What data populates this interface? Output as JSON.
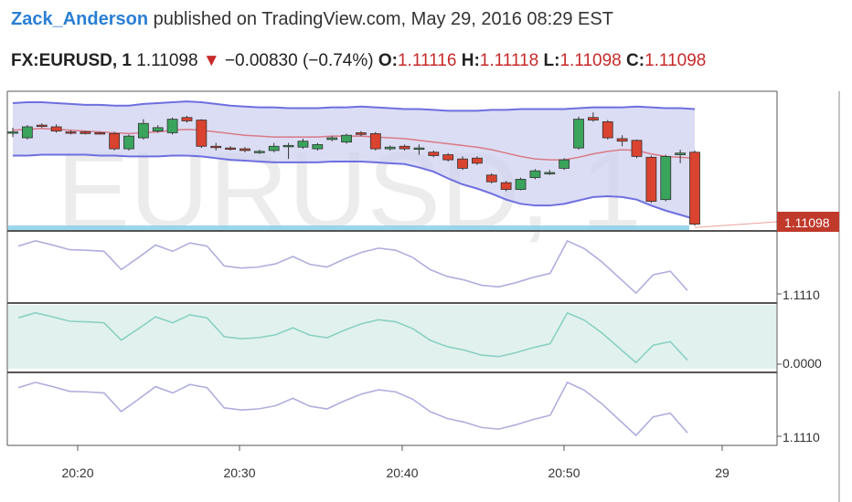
{
  "header": {
    "author": "Zack_Anderson",
    "published_text": "published on TradingView.com, May 29, 2016 08:29 EST",
    "symbol": "FX:EURUSD, 1",
    "last": "1.11098",
    "change": "−0.00830 (−0.74%)",
    "open_label": "O:",
    "open": "1.11116",
    "high_label": "H:",
    "high": "1.11118",
    "low_label": "L:",
    "low": "1.11098",
    "close_label": "C:",
    "close": "1.11098"
  },
  "watermark": "EURUSD, 1",
  "price_label": "1.11098",
  "pane_labels": [
    "1.1110",
    "0.0000",
    "1.1110"
  ],
  "x_ticks": [
    "20:20",
    "20:30",
    "20:40",
    "20:50",
    "29"
  ],
  "colors": {
    "up": "#3aa35c",
    "down": "#d9432f",
    "band_fill": "#cfd2f0",
    "band_line": "#6e6fe0",
    "ma_line": "#d97a86",
    "pane_line": "#b0aedd",
    "osc_fill": "#e1f2ee",
    "osc_line": "#8ad0c2",
    "price_tag": "#c0392b"
  },
  "chart_data": {
    "type": "candlestick",
    "x_range": [
      "20:16",
      "20:58"
    ],
    "x_ticks": [
      "20:20",
      "20:30",
      "20:40",
      "20:50",
      "29"
    ],
    "last_price": 1.11098,
    "candles": [
      {
        "o": 0.46,
        "c": 0.47,
        "h": 0.52,
        "l": 0.41
      },
      {
        "o": 0.4,
        "c": 0.53,
        "h": 0.55,
        "l": 0.38
      },
      {
        "o": 0.55,
        "c": 0.54,
        "h": 0.57,
        "l": 0.52
      },
      {
        "o": 0.53,
        "c": 0.48,
        "h": 0.56,
        "l": 0.46
      },
      {
        "o": 0.47,
        "c": 0.46,
        "h": 0.49,
        "l": 0.44
      },
      {
        "o": 0.47,
        "c": 0.45,
        "h": 0.48,
        "l": 0.44
      },
      {
        "o": 0.46,
        "c": 0.45,
        "h": 0.47,
        "l": 0.44
      },
      {
        "o": 0.45,
        "c": 0.27,
        "h": 0.47,
        "l": 0.25
      },
      {
        "o": 0.27,
        "c": 0.42,
        "h": 0.44,
        "l": 0.25
      },
      {
        "o": 0.4,
        "c": 0.57,
        "h": 0.62,
        "l": 0.38
      },
      {
        "o": 0.48,
        "c": 0.52,
        "h": 0.55,
        "l": 0.46
      },
      {
        "o": 0.46,
        "c": 0.62,
        "h": 0.64,
        "l": 0.44
      },
      {
        "o": 0.64,
        "c": 0.6,
        "h": 0.66,
        "l": 0.58
      },
      {
        "o": 0.61,
        "c": 0.3,
        "h": 0.62,
        "l": 0.28
      },
      {
        "o": 0.3,
        "c": 0.29,
        "h": 0.34,
        "l": 0.25
      },
      {
        "o": 0.28,
        "c": 0.27,
        "h": 0.3,
        "l": 0.25
      },
      {
        "o": 0.27,
        "c": 0.25,
        "h": 0.29,
        "l": 0.23
      },
      {
        "o": 0.23,
        "c": 0.24,
        "h": 0.26,
        "l": 0.21
      },
      {
        "o": 0.25,
        "c": 0.3,
        "h": 0.34,
        "l": 0.23
      },
      {
        "o": 0.31,
        "c": 0.31,
        "h": 0.34,
        "l": 0.15
      },
      {
        "o": 0.29,
        "c": 0.36,
        "h": 0.39,
        "l": 0.27
      },
      {
        "o": 0.27,
        "c": 0.32,
        "h": 0.34,
        "l": 0.25
      },
      {
        "o": 0.38,
        "c": 0.4,
        "h": 0.42,
        "l": 0.36
      },
      {
        "o": 0.35,
        "c": 0.43,
        "h": 0.45,
        "l": 0.33
      },
      {
        "o": 0.46,
        "c": 0.44,
        "h": 0.48,
        "l": 0.42
      },
      {
        "o": 0.45,
        "c": 0.27,
        "h": 0.47,
        "l": 0.25
      },
      {
        "o": 0.27,
        "c": 0.29,
        "h": 0.31,
        "l": 0.25
      },
      {
        "o": 0.3,
        "c": 0.27,
        "h": 0.32,
        "l": 0.25
      },
      {
        "o": 0.28,
        "c": 0.28,
        "h": 0.32,
        "l": 0.2
      },
      {
        "o": 0.23,
        "c": 0.19,
        "h": 0.25,
        "l": 0.17
      },
      {
        "o": 0.2,
        "c": 0.14,
        "h": 0.22,
        "l": 0.12
      },
      {
        "o": 0.15,
        "c": 0.04,
        "h": 0.18,
        "l": 0.02
      },
      {
        "o": 0.16,
        "c": 0.1,
        "h": 0.18,
        "l": 0.08
      },
      {
        "o": -0.04,
        "c": -0.12,
        "h": -0.02,
        "l": -0.14
      },
      {
        "o": -0.13,
        "c": -0.21,
        "h": -0.11,
        "l": -0.23
      },
      {
        "o": -0.21,
        "c": -0.09,
        "h": -0.07,
        "l": -0.22
      },
      {
        "o": -0.07,
        "c": 0.01,
        "h": 0.03,
        "l": -0.09
      },
      {
        "o": -0.01,
        "c": -0.01,
        "h": 0.02,
        "l": -0.04
      },
      {
        "o": 0.04,
        "c": 0.14,
        "h": 0.16,
        "l": 0.02
      },
      {
        "o": 0.28,
        "c": 0.62,
        "h": 0.65,
        "l": 0.26
      },
      {
        "o": 0.64,
        "c": 0.61,
        "h": 0.7,
        "l": 0.59
      },
      {
        "o": 0.59,
        "c": 0.4,
        "h": 0.61,
        "l": 0.38
      },
      {
        "o": 0.39,
        "c": 0.36,
        "h": 0.43,
        "l": 0.3
      },
      {
        "o": 0.37,
        "c": 0.18,
        "h": 0.38,
        "l": 0.16
      },
      {
        "o": 0.17,
        "c": -0.35,
        "h": 0.19,
        "l": -0.37
      },
      {
        "o": -0.33,
        "c": 0.18,
        "h": 0.2,
        "l": -0.35
      },
      {
        "o": 0.2,
        "c": 0.22,
        "h": 0.26,
        "l": 0.1
      },
      {
        "o": 0.23,
        "c": -0.62,
        "h": 0.25,
        "l": -0.64
      }
    ],
    "upper_band": [
      0.81,
      0.82,
      0.82,
      0.81,
      0.8,
      0.79,
      0.79,
      0.78,
      0.78,
      0.8,
      0.81,
      0.82,
      0.83,
      0.82,
      0.8,
      0.78,
      0.77,
      0.76,
      0.76,
      0.75,
      0.75,
      0.75,
      0.76,
      0.76,
      0.77,
      0.76,
      0.75,
      0.74,
      0.74,
      0.73,
      0.72,
      0.72,
      0.72,
      0.73,
      0.73,
      0.74,
      0.74,
      0.74,
      0.74,
      0.75,
      0.76,
      0.76,
      0.76,
      0.77,
      0.76,
      0.75,
      0.75,
      0.74
    ],
    "mid_ma": [
      0.49,
      0.5,
      0.51,
      0.5,
      0.49,
      0.48,
      0.47,
      0.46,
      0.45,
      0.46,
      0.47,
      0.49,
      0.5,
      0.49,
      0.47,
      0.45,
      0.43,
      0.42,
      0.41,
      0.41,
      0.41,
      0.41,
      0.42,
      0.42,
      0.42,
      0.41,
      0.4,
      0.39,
      0.37,
      0.35,
      0.33,
      0.31,
      0.29,
      0.26,
      0.22,
      0.18,
      0.15,
      0.14,
      0.14,
      0.17,
      0.21,
      0.24,
      0.26,
      0.25,
      0.21,
      0.18,
      0.17,
      0.16
    ],
    "lower_band": [
      0.19,
      0.19,
      0.2,
      0.2,
      0.2,
      0.2,
      0.19,
      0.19,
      0.18,
      0.18,
      0.18,
      0.19,
      0.19,
      0.18,
      0.16,
      0.14,
      0.13,
      0.12,
      0.11,
      0.11,
      0.11,
      0.11,
      0.12,
      0.12,
      0.12,
      0.11,
      0.1,
      0.09,
      0.05,
      0.0,
      -0.08,
      -0.15,
      -0.2,
      -0.26,
      -0.33,
      -0.38,
      -0.4,
      -0.4,
      -0.38,
      -0.34,
      -0.3,
      -0.29,
      -0.3,
      -0.33,
      -0.4,
      -0.46,
      -0.51,
      -0.56
    ],
    "pane2_line": [
      0.8,
      0.9,
      0.82,
      0.73,
      0.72,
      0.7,
      0.35,
      0.58,
      0.82,
      0.7,
      0.86,
      0.8,
      0.42,
      0.38,
      0.4,
      0.46,
      0.6,
      0.45,
      0.4,
      0.55,
      0.68,
      0.76,
      0.72,
      0.58,
      0.35,
      0.22,
      0.15,
      0.05,
      0.02,
      0.1,
      0.2,
      0.28,
      0.9,
      0.75,
      0.5,
      0.2,
      -0.1,
      0.25,
      0.32,
      -0.05
    ],
    "pane3_line": [
      0.8,
      0.9,
      0.82,
      0.73,
      0.72,
      0.7,
      0.35,
      0.58,
      0.82,
      0.7,
      0.86,
      0.8,
      0.42,
      0.38,
      0.4,
      0.46,
      0.6,
      0.45,
      0.4,
      0.55,
      0.68,
      0.76,
      0.72,
      0.58,
      0.35,
      0.22,
      0.15,
      0.05,
      0.02,
      0.1,
      0.2,
      0.28,
      0.9,
      0.75,
      0.5,
      0.2,
      -0.1,
      0.25,
      0.32,
      -0.05
    ],
    "pane4_line": [
      0.8,
      0.9,
      0.82,
      0.73,
      0.72,
      0.7,
      0.35,
      0.58,
      0.82,
      0.7,
      0.86,
      0.8,
      0.42,
      0.38,
      0.4,
      0.46,
      0.6,
      0.45,
      0.4,
      0.55,
      0.68,
      0.76,
      0.72,
      0.58,
      0.35,
      0.22,
      0.15,
      0.05,
      0.02,
      0.1,
      0.2,
      0.28,
      0.9,
      0.75,
      0.5,
      0.2,
      -0.1,
      0.25,
      0.32,
      -0.05
    ]
  }
}
